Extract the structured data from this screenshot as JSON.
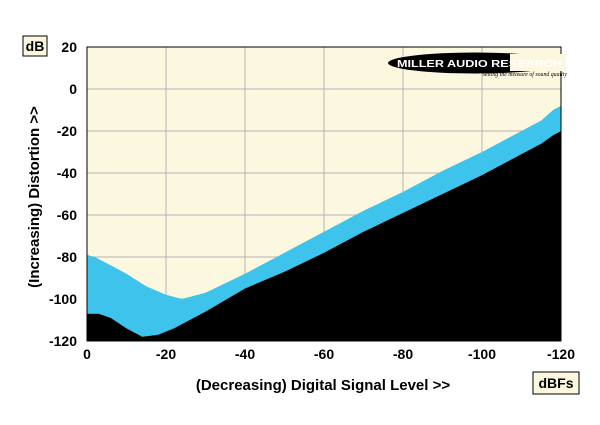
{
  "logo": {
    "name": "MILLER AUDIO RESEARCH",
    "tagline": "Setting the measure of sound quality"
  },
  "colors": {
    "plot_background": "#fbf8df",
    "grid": "#b3b3b3",
    "band_fill": "#3ec3ec",
    "floor_fill": "#000000"
  },
  "chart_data": {
    "type": "area",
    "y_unit_label": "dB",
    "x_unit_label": "dBFs",
    "xlabel": "(Decreasing) Digital Signal Level >>",
    "ylabel": "(Increasing) Distortion >>",
    "xlim": [
      0,
      -120
    ],
    "ylim": [
      -120,
      20
    ],
    "x_ticks": [
      0,
      -20,
      -40,
      -60,
      -80,
      -100,
      -120
    ],
    "y_ticks": [
      20,
      0,
      -20,
      -40,
      -60,
      -80,
      -100,
      -120
    ],
    "grid": true,
    "series": [
      {
        "role": "distortion-band-upper",
        "x": [
          0,
          -2,
          -5,
          -10,
          -15,
          -20,
          -24,
          -30,
          -40,
          -50,
          -60,
          -70,
          -80,
          -90,
          -100,
          -110,
          -115,
          -118,
          -120
        ],
        "y": [
          -79,
          -80,
          -83,
          -88,
          -94,
          -98,
          -100,
          -97,
          -88,
          -78,
          -68,
          -58,
          -49,
          -39,
          -30,
          -20,
          -15,
          -10,
          -8
        ]
      },
      {
        "role": "distortion-band-lower",
        "x": [
          0,
          -3,
          -6,
          -10,
          -14,
          -18,
          -22,
          -30,
          -40,
          -50,
          -60,
          -70,
          -80,
          -90,
          -100,
          -110,
          -115,
          -118,
          -120
        ],
        "y": [
          -107,
          -107,
          -109,
          -114,
          -118,
          -117,
          -114,
          -106,
          -95,
          -87,
          -78,
          -68,
          -59,
          -50,
          -41,
          -31,
          -26,
          -22,
          -20
        ]
      }
    ]
  }
}
